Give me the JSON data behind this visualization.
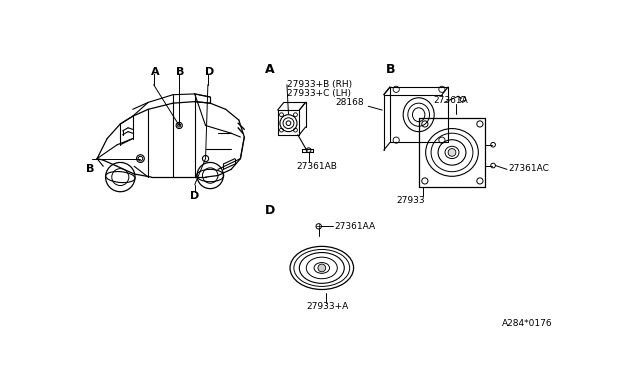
{
  "bg_color": "#ffffff",
  "line_color": "#000000",
  "fig_width": 6.4,
  "fig_height": 3.72,
  "dpi": 100,
  "diagram_code": "A284*0176",
  "labels": {
    "car_A": "A",
    "car_B_top": "B",
    "car_D": "D",
    "car_B_left": "B",
    "car_D_bot": "D",
    "sec_A": "A",
    "sec_B": "B",
    "sec_D": "D",
    "A_line1": "27933+B (RH)",
    "A_line2": "27933+C (LH)",
    "A_bot": "27361AB",
    "B_top": "27361A",
    "B_left": "28168",
    "B_bot": "27933",
    "B_right": "27361AC",
    "D_top": "27361AA",
    "D_bot": "27933+A",
    "code": "A284*0176"
  }
}
